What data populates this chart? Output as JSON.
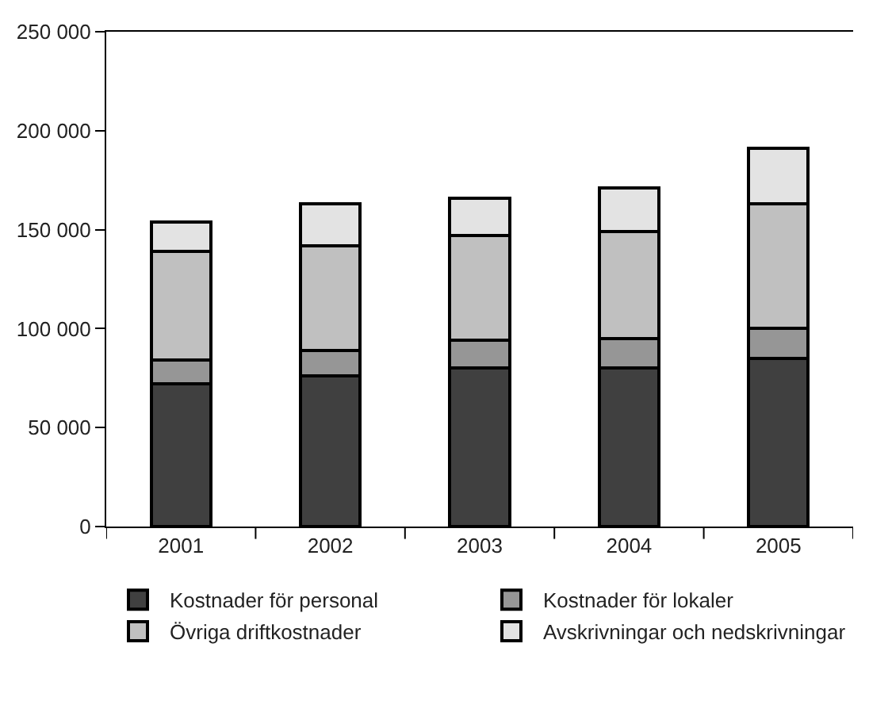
{
  "chart_data": {
    "type": "bar",
    "stacked": true,
    "categories": [
      "2001",
      "2002",
      "2003",
      "2004",
      "2005"
    ],
    "series": [
      {
        "name": "Kostnader för personal",
        "color": "#404040",
        "values": [
          72000,
          76000,
          80000,
          80000,
          85000
        ]
      },
      {
        "name": "Kostnader för lokaler",
        "color": "#969696",
        "values": [
          12000,
          13000,
          14000,
          15000,
          15000
        ]
      },
      {
        "name": "Övriga driftkostnader",
        "color": "#c0c0c0",
        "values": [
          55000,
          53000,
          53000,
          54000,
          63000
        ]
      },
      {
        "name": "Avskrivningar och nedskrivningar",
        "color": "#e3e3e3",
        "values": [
          15000,
          21000,
          19000,
          22000,
          28000
        ]
      }
    ],
    "ylim": [
      0,
      250000
    ],
    "yticks": [
      {
        "value": 0,
        "label": "0"
      },
      {
        "value": 50000,
        "label": "50 000"
      },
      {
        "value": 100000,
        "label": "100 000"
      },
      {
        "value": 150000,
        "label": "150 000"
      },
      {
        "value": 200000,
        "label": "200 000"
      },
      {
        "value": 250000,
        "label": "250 000"
      }
    ],
    "legend": "bottom"
  }
}
